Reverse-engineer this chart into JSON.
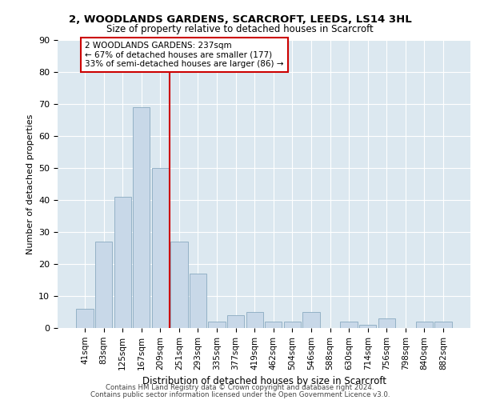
{
  "title": "2, WOODLANDS GARDENS, SCARCROFT, LEEDS, LS14 3HL",
  "subtitle": "Size of property relative to detached houses in Scarcroft",
  "xlabel": "Distribution of detached houses by size in Scarcroft",
  "ylabel": "Number of detached properties",
  "bar_color": "#c8d8e8",
  "bar_edge_color": "#8aaac0",
  "categories": [
    "41sqm",
    "83sqm",
    "125sqm",
    "167sqm",
    "209sqm",
    "251sqm",
    "293sqm",
    "335sqm",
    "377sqm",
    "419sqm",
    "462sqm",
    "504sqm",
    "546sqm",
    "588sqm",
    "630sqm",
    "714sqm",
    "756sqm",
    "798sqm",
    "840sqm",
    "882sqm"
  ],
  "values": [
    6,
    27,
    41,
    69,
    50,
    27,
    17,
    2,
    4,
    5,
    2,
    2,
    5,
    0,
    2,
    1,
    3,
    0,
    2,
    2
  ],
  "ylim": [
    0,
    90
  ],
  "yticks": [
    0,
    10,
    20,
    30,
    40,
    50,
    60,
    70,
    80,
    90
  ],
  "vline_x": 4.5,
  "vline_color": "#cc0000",
  "annotation_title": "2 WOODLANDS GARDENS: 237sqm",
  "annotation_line1": "← 67% of detached houses are smaller (177)",
  "annotation_line2": "33% of semi-detached houses are larger (86) →",
  "annotation_box_color": "#cc0000",
  "footer1": "Contains HM Land Registry data © Crown copyright and database right 2024.",
  "footer2": "Contains public sector information licensed under the Open Government Licence v3.0.",
  "background_color": "#ffffff",
  "plot_background": "#dce8f0",
  "grid_color": "#ffffff"
}
